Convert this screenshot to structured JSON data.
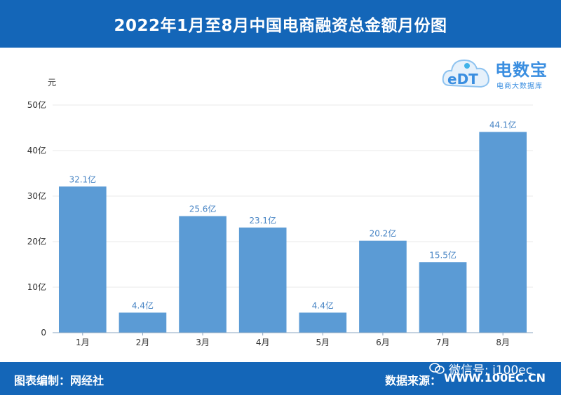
{
  "header": {
    "title": "2022年1月至8月中国电商融资总金额月份图"
  },
  "logo": {
    "brand": "电数宝",
    "sub": "电商大数据库",
    "mark": "eDT"
  },
  "footer": {
    "left_text": "图表编制：网经社",
    "source_label": "数据来源：",
    "source_url": "WWW.100EC.CN"
  },
  "wechat": {
    "text": "微信号: i100ec"
  },
  "colors": {
    "header": "#1466b8",
    "bar": "#5b9bd5",
    "label": "#4a86c5"
  },
  "chart_data": {
    "type": "bar",
    "ylabel": "元",
    "categories": [
      "1月",
      "2月",
      "3月",
      "4月",
      "5月",
      "6月",
      "7月",
      "8月"
    ],
    "values": [
      32.1,
      4.4,
      25.6,
      23.1,
      4.4,
      20.2,
      15.5,
      44.1
    ],
    "value_labels": [
      "32.1亿",
      "4.4亿",
      "25.6亿",
      "23.1亿",
      "4.4亿",
      "20.2亿",
      "15.5亿",
      "44.1亿"
    ],
    "ylim": [
      0,
      50
    ],
    "yticks": [
      0,
      10,
      20,
      30,
      40,
      50
    ],
    "ytick_labels": [
      "0",
      "10亿",
      "20亿",
      "30亿",
      "40亿",
      "50亿"
    ],
    "grid": true
  }
}
